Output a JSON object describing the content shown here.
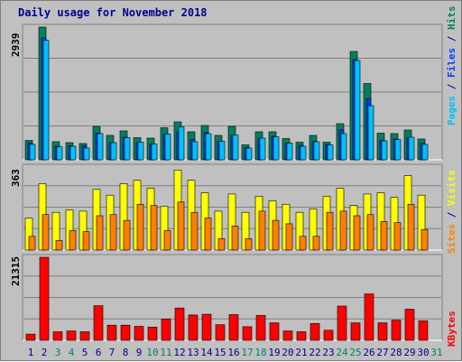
{
  "title": "Daily usage for November 2018",
  "y_max_labels": {
    "top": "2939",
    "middle": "363",
    "bottom": "21315"
  },
  "right_labels": {
    "top": [
      {
        "text": "Pages",
        "color": "#00c0ff"
      },
      {
        "text": " / ",
        "color": "#00008b"
      },
      {
        "text": "Files",
        "color": "#0040ff"
      },
      {
        "text": " / ",
        "color": "#00008b"
      },
      {
        "text": "Hits",
        "color": "#008060"
      }
    ],
    "middle": [
      {
        "text": "Sites",
        "color": "#ff8000"
      },
      {
        "text": " / ",
        "color": "#00008b"
      },
      {
        "text": "Visits",
        "color": "#ffff00"
      }
    ],
    "bottom": [
      {
        "text": "KBytes",
        "color": "#ff0000"
      }
    ]
  },
  "colors": {
    "hits": "#008060",
    "files": "#0040ff",
    "pages": "#00c0ff",
    "visits": "#ffff00",
    "sites": "#ff8000",
    "kbytes": "#ff0000",
    "weekday": "#00008b",
    "weekend": "#008060",
    "border": "#808080",
    "grid": "#000000"
  },
  "chart_data": [
    {
      "type": "bar",
      "title": "Daily usage for November 2018",
      "ylabel": "Pages / Files / Hits",
      "categories": [
        "1",
        "2",
        "3",
        "4",
        "5",
        "6",
        "7",
        "8",
        "9",
        "10",
        "11",
        "12",
        "13",
        "14",
        "15",
        "16",
        "17",
        "18",
        "19",
        "20",
        "21",
        "22",
        "23",
        "24",
        "25",
        "26",
        "27",
        "28",
        "29",
        "30",
        "31"
      ],
      "weekend_days": [
        3,
        4,
        10,
        11,
        17,
        18,
        24,
        25,
        31
      ],
      "ylim": [
        0,
        2939
      ],
      "series": [
        {
          "name": "Hits",
          "values": [
            430,
            2939,
            400,
            380,
            360,
            740,
            540,
            640,
            490,
            480,
            710,
            840,
            620,
            760,
            540,
            740,
            330,
            620,
            620,
            470,
            390,
            540,
            390,
            800,
            2400,
            1690,
            590,
            580,
            660,
            460,
            0
          ]
        },
        {
          "name": "Files",
          "values": [
            370,
            2700,
            300,
            310,
            310,
            590,
            380,
            500,
            380,
            350,
            560,
            620,
            450,
            600,
            410,
            540,
            270,
            480,
            520,
            370,
            320,
            410,
            340,
            660,
            2220,
            1360,
            430,
            460,
            490,
            370,
            0
          ]
        },
        {
          "name": "Pages",
          "values": [
            340,
            2650,
            290,
            300,
            260,
            580,
            380,
            490,
            390,
            350,
            570,
            730,
            400,
            580,
            410,
            550,
            260,
            480,
            510,
            370,
            300,
            400,
            330,
            580,
            2200,
            1200,
            420,
            450,
            500,
            340,
            0
          ]
        }
      ]
    },
    {
      "type": "bar",
      "ylabel": "Sites / Visits",
      "categories": [
        "1",
        "2",
        "3",
        "4",
        "5",
        "6",
        "7",
        "8",
        "9",
        "10",
        "11",
        "12",
        "13",
        "14",
        "15",
        "16",
        "17",
        "18",
        "19",
        "20",
        "21",
        "22",
        "23",
        "24",
        "25",
        "26",
        "27",
        "28",
        "29",
        "30",
        "31"
      ],
      "ylim": [
        0,
        363
      ],
      "series": [
        {
          "name": "Visits",
          "values": [
            140,
            290,
            165,
            175,
            170,
            265,
            240,
            290,
            305,
            270,
            190,
            350,
            305,
            250,
            170,
            245,
            165,
            235,
            215,
            200,
            165,
            180,
            235,
            270,
            195,
            245,
            250,
            230,
            325,
            240,
            0
          ]
        },
        {
          "name": "Sites",
          "values": [
            60,
            155,
            42,
            85,
            80,
            150,
            155,
            130,
            200,
            195,
            85,
            210,
            165,
            140,
            50,
            105,
            50,
            170,
            130,
            115,
            60,
            60,
            165,
            170,
            150,
            155,
            125,
            120,
            200,
            90,
            0
          ]
        }
      ]
    },
    {
      "type": "bar",
      "ylabel": "KBytes",
      "categories": [
        "1",
        "2",
        "3",
        "4",
        "5",
        "6",
        "7",
        "8",
        "9",
        "10",
        "11",
        "12",
        "13",
        "14",
        "15",
        "16",
        "17",
        "18",
        "19",
        "20",
        "21",
        "22",
        "23",
        "24",
        "25",
        "26",
        "27",
        "28",
        "29",
        "30",
        "31"
      ],
      "ylim": [
        0,
        21315
      ],
      "series": [
        {
          "name": "KBytes",
          "values": [
            1600,
            21315,
            2200,
            2400,
            2200,
            8900,
            3900,
            3900,
            3600,
            3400,
            5500,
            8300,
            6500,
            6700,
            4000,
            6600,
            3500,
            6400,
            4500,
            2400,
            2200,
            4300,
            2600,
            8800,
            4500,
            11900,
            4500,
            5200,
            8000,
            5000,
            0
          ]
        }
      ]
    }
  ]
}
